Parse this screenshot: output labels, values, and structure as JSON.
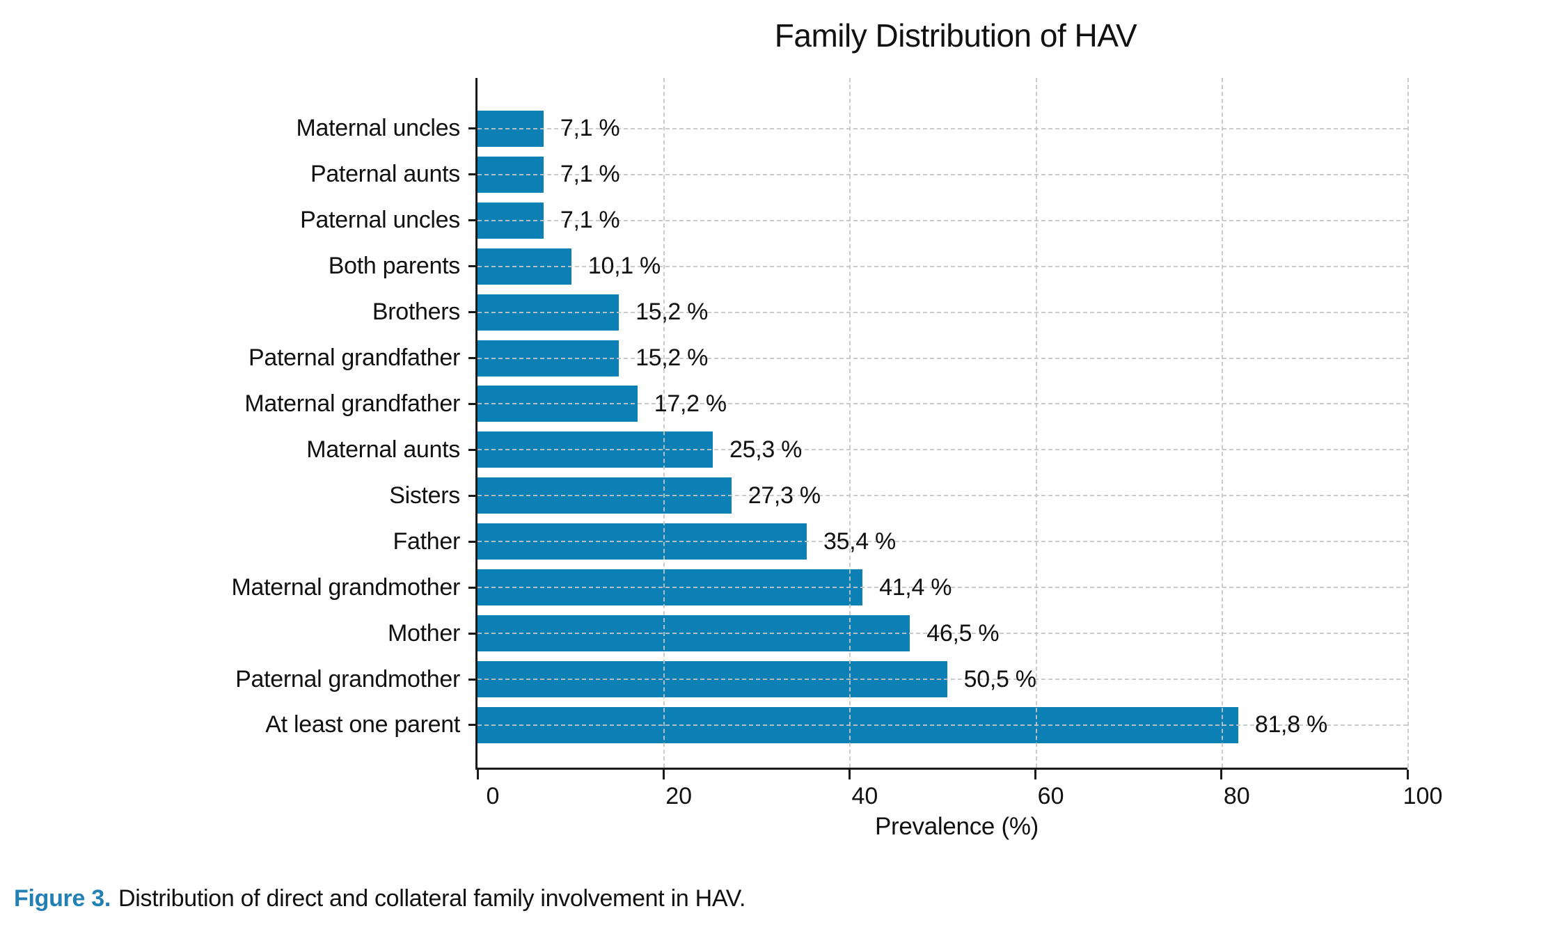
{
  "chart_data": {
    "type": "bar",
    "orientation": "horizontal",
    "title": "Family Distribution of HAV",
    "categories": [
      "Maternal uncles",
      "Paternal aunts",
      "Paternal uncles",
      "Both parents",
      "Brothers",
      "Paternal grandfather",
      "Maternal grandfather",
      "Maternal aunts",
      "Sisters",
      "Father",
      "Maternal grandmother",
      "Mother",
      "Paternal grandmother",
      "At least one parent"
    ],
    "values": [
      7.1,
      7.1,
      7.1,
      10.1,
      15.2,
      15.2,
      17.2,
      25.3,
      27.3,
      35.4,
      41.4,
      46.5,
      50.5,
      81.8
    ],
    "value_labels": [
      "7,1 %",
      "7,1 %",
      "7,1 %",
      "10,1 %",
      "15,2 %",
      "15,2 %",
      "17,2 %",
      "25,3 %",
      "27,3 %",
      "35,4 %",
      "41,4 %",
      "46,5 %",
      "50,5 %",
      "81,8 %"
    ],
    "xlabel": "Prevalence (%)",
    "xticks": [
      0,
      20,
      40,
      60,
      80,
      100
    ],
    "xtick_labels": [
      "0",
      "20",
      "40",
      "60",
      "80",
      "100"
    ],
    "xlim": [
      0,
      100
    ],
    "grid": "dashed gray, vertical at x ticks and horizontal at each category, drawn over bars",
    "legend": "none",
    "bar_color": "#0c80b5"
  },
  "figure": {
    "caption_prefix": "Figure 3.",
    "caption_text": "Distribution of direct and collateral family involvement in HAV."
  },
  "colors": {
    "bar": "#0c80b5",
    "caption_prefix": "#2380b5",
    "grid": "#c5c5c5",
    "axis": "#1a1a1a",
    "background": "#ffffff"
  }
}
